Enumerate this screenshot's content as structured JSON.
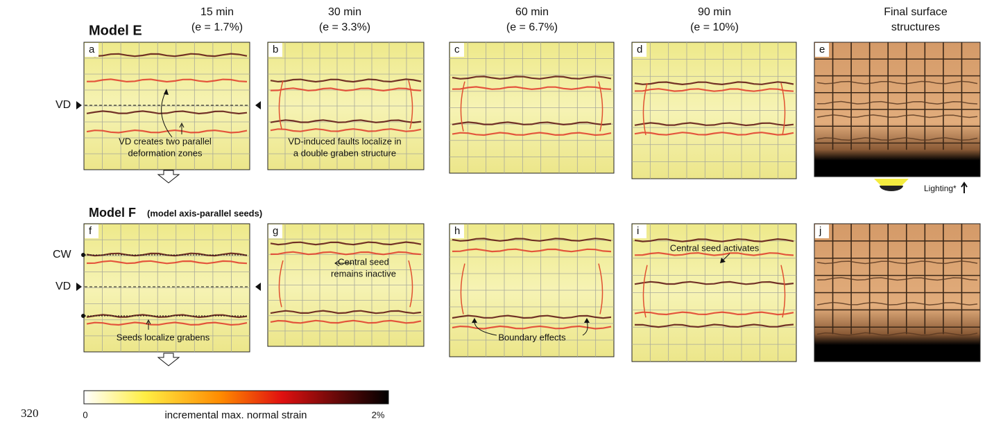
{
  "line_number": "320",
  "columns": [
    {
      "time": "15 min",
      "strain": "(e = 1.7%)"
    },
    {
      "time": "30 min",
      "strain": "(e = 3.3%)"
    },
    {
      "time": "60 min",
      "strain": "(e = 6.7%)"
    },
    {
      "time": "90 min",
      "strain": "(e = 10%)"
    },
    {
      "time": "Final surface",
      "strain": "structures"
    }
  ],
  "models": [
    {
      "title": "Model E",
      "panels": [
        "a",
        "b",
        "c",
        "d",
        "e"
      ],
      "side_labels": [
        "VD"
      ]
    },
    {
      "title": "Model F",
      "subtitle": "(model axis-parallel seeds)",
      "panels": [
        "f",
        "g",
        "h",
        "i",
        "j"
      ],
      "side_labels": [
        "CW",
        "VD"
      ]
    }
  ],
  "annotations": {
    "vd_zones": [
      "VD creates two parallel",
      "deformation zones"
    ],
    "vd_faults": [
      "VD-induced faults localize in",
      "a double graben structure"
    ],
    "central_inactive": [
      "Central seed",
      "remains inactive"
    ],
    "seeds_grabens": [
      "Seeds localize grabens"
    ],
    "boundary": [
      "Boundary effects"
    ],
    "central_activates": [
      "Central seed activates"
    ],
    "lighting": "Lighting*"
  },
  "colorbar": {
    "min": "0",
    "label": "incremental max. normal strain",
    "max": "2%"
  }
}
